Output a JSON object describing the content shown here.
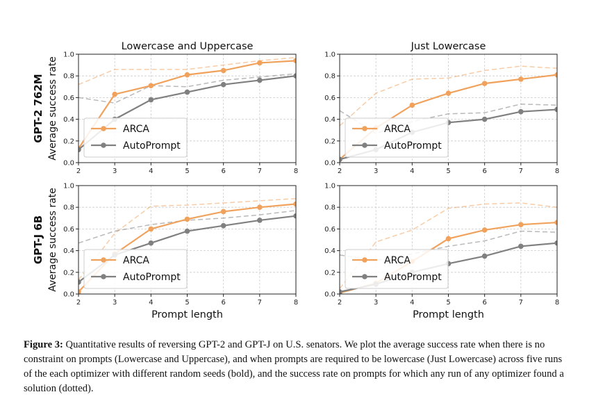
{
  "shared": {
    "xlabel": "Prompt length",
    "ylabel": "Average success rate",
    "x_ticks": [
      2,
      3,
      4,
      5,
      6,
      7,
      8
    ],
    "y_ticks": [
      "0.0",
      "0.2",
      "0.4",
      "0.6",
      "0.8",
      "1.0"
    ],
    "legend": [
      "ARCA",
      "AutoPrompt"
    ],
    "colors": {
      "ARCA": "#f0a25c",
      "AutoPrompt": "#808080"
    }
  },
  "column_titles": [
    "Lowercase and Uppercase",
    "Just Lowercase"
  ],
  "row_titles": [
    "GPT-2 762M",
    "GPT-J 6B"
  ],
  "chart_data": [
    {
      "type": "line",
      "row": 0,
      "col": 0,
      "title": "Lowercase and Uppercase",
      "x": [
        2,
        3,
        4,
        5,
        6,
        7,
        8
      ],
      "ylim": [
        0,
        1
      ],
      "grid": true,
      "legend": "lower-left",
      "series": [
        {
          "name": "ARCA",
          "style": "solid",
          "values": [
            0.13,
            0.63,
            0.71,
            0.81,
            0.85,
            0.92,
            0.94
          ]
        },
        {
          "name": "AutoPrompt",
          "style": "solid",
          "values": [
            0.12,
            0.4,
            0.58,
            0.65,
            0.72,
            0.76,
            0.8
          ]
        },
        {
          "name": "ARCA",
          "style": "dashed",
          "values": [
            0.72,
            0.86,
            0.86,
            0.86,
            0.9,
            0.94,
            0.97
          ]
        },
        {
          "name": "AutoPrompt",
          "style": "dashed",
          "values": [
            0.6,
            0.55,
            0.71,
            0.7,
            0.76,
            0.79,
            0.82
          ]
        }
      ]
    },
    {
      "type": "line",
      "row": 0,
      "col": 1,
      "title": "Just Lowercase",
      "x": [
        2,
        3,
        4,
        5,
        6,
        7,
        8
      ],
      "ylim": [
        0,
        1
      ],
      "grid": true,
      "legend": "lower-left",
      "series": [
        {
          "name": "ARCA",
          "style": "solid",
          "values": [
            0.03,
            0.32,
            0.53,
            0.64,
            0.73,
            0.77,
            0.81
          ]
        },
        {
          "name": "AutoPrompt",
          "style": "solid",
          "values": [
            0.03,
            0.12,
            0.28,
            0.37,
            0.4,
            0.47,
            0.49
          ]
        },
        {
          "name": "ARCA",
          "style": "dashed",
          "values": [
            0.34,
            0.64,
            0.77,
            0.78,
            0.85,
            0.89,
            0.87
          ]
        },
        {
          "name": "AutoPrompt",
          "style": "dashed",
          "values": [
            0.48,
            0.27,
            0.38,
            0.45,
            0.46,
            0.54,
            0.53
          ]
        }
      ]
    },
    {
      "type": "line",
      "row": 1,
      "col": 0,
      "title": "",
      "x": [
        2,
        3,
        4,
        5,
        6,
        7,
        8
      ],
      "ylim": [
        0,
        1
      ],
      "grid": true,
      "legend": "lower-left",
      "series": [
        {
          "name": "ARCA",
          "style": "solid",
          "values": [
            0.02,
            0.37,
            0.6,
            0.69,
            0.76,
            0.8,
            0.83
          ]
        },
        {
          "name": "AutoPrompt",
          "style": "solid",
          "values": [
            0.11,
            0.36,
            0.47,
            0.58,
            0.63,
            0.68,
            0.72
          ]
        },
        {
          "name": "ARCA",
          "style": "dashed",
          "values": [
            0.13,
            0.56,
            0.81,
            0.82,
            0.84,
            0.86,
            0.88
          ]
        },
        {
          "name": "AutoPrompt",
          "style": "dashed",
          "values": [
            0.47,
            0.58,
            0.64,
            0.68,
            0.7,
            0.73,
            0.77
          ]
        }
      ]
    },
    {
      "type": "line",
      "row": 1,
      "col": 1,
      "title": "",
      "x": [
        2,
        3,
        4,
        5,
        6,
        7,
        8
      ],
      "ylim": [
        0,
        1
      ],
      "grid": true,
      "legend": "lower-left",
      "series": [
        {
          "name": "ARCA",
          "style": "solid",
          "values": [
            0.01,
            0.1,
            0.3,
            0.51,
            0.59,
            0.64,
            0.66
          ]
        },
        {
          "name": "AutoPrompt",
          "style": "solid",
          "values": [
            0.02,
            0.09,
            0.2,
            0.28,
            0.35,
            0.44,
            0.47
          ]
        },
        {
          "name": "ARCA",
          "style": "dashed",
          "values": [
            0.05,
            0.48,
            0.59,
            0.79,
            0.83,
            0.84,
            0.8
          ]
        },
        {
          "name": "AutoPrompt",
          "style": "dashed",
          "values": [
            0.36,
            0.31,
            0.37,
            0.44,
            0.49,
            0.58,
            0.57
          ]
        }
      ]
    }
  ],
  "caption": {
    "label": "Figure 3:",
    "text": " Quantitative results of reversing GPT-2 and GPT-J on U.S. senators. We plot the average success rate when there is no constraint on prompts (Lowercase and Uppercase), and when prompts are required to be lowercase (Just Lowercase) across five runs of the each optimizer with different random seeds (bold), and the success rate on prompts for which any run of any optimizer found a solution (dotted)."
  }
}
